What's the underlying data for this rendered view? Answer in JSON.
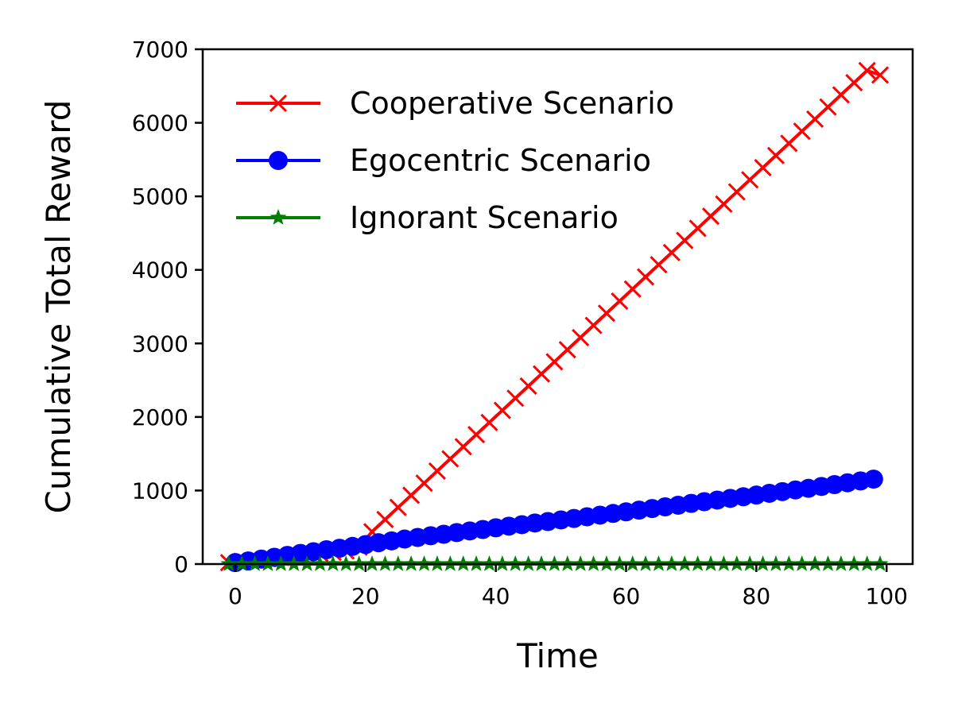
{
  "chart_data": {
    "type": "line",
    "xlabel": "Time",
    "ylabel": "Cumulative Total Reward",
    "xlim": [
      -5,
      104
    ],
    "ylim": [
      0,
      7000
    ],
    "xticks": [
      0,
      20,
      40,
      60,
      80,
      100
    ],
    "yticks": [
      0,
      1000,
      2000,
      3000,
      4000,
      5000,
      6000,
      7000
    ],
    "grid": false,
    "legend_position": "top-left",
    "series": [
      {
        "name": "Cooperative Scenario",
        "color": "#ff0000",
        "marker": "x",
        "x": [
          -1,
          1,
          3,
          5,
          7,
          9,
          11,
          13,
          15,
          17,
          19,
          21,
          23,
          25,
          27,
          29,
          31,
          33,
          35,
          37,
          39,
          41,
          43,
          45,
          47,
          49,
          51,
          53,
          55,
          57,
          59,
          61,
          63,
          65,
          67,
          69,
          71,
          73,
          75,
          77,
          79,
          81,
          83,
          85,
          87,
          89,
          91,
          93,
          95,
          97,
          99
        ],
        "y": [
          20,
          37,
          55,
          72,
          90,
          107,
          125,
          142,
          160,
          177,
          230,
          440,
          605,
          770,
          935,
          1100,
          1265,
          1430,
          1595,
          1760,
          1925,
          2090,
          2255,
          2420,
          2585,
          2750,
          2915,
          3080,
          3245,
          3410,
          3575,
          3740,
          3905,
          4070,
          4235,
          4400,
          4565,
          4730,
          4895,
          5060,
          5225,
          5390,
          5555,
          5720,
          5885,
          6050,
          6215,
          6380,
          6545,
          6710,
          6650
        ]
      },
      {
        "name": "Egocentric Scenario",
        "color": "#0000ff",
        "marker": "o",
        "x": [
          0,
          2,
          4,
          6,
          8,
          10,
          12,
          14,
          16,
          18,
          20,
          22,
          24,
          26,
          28,
          30,
          32,
          34,
          36,
          38,
          40,
          42,
          44,
          46,
          48,
          50,
          52,
          54,
          56,
          58,
          60,
          62,
          64,
          66,
          68,
          70,
          72,
          74,
          76,
          78,
          80,
          82,
          84,
          86,
          88,
          90,
          92,
          94,
          96,
          98
        ],
        "y": [
          20,
          42,
          68,
          92,
          118,
          145,
          168,
          195,
          215,
          240,
          265,
          290,
          315,
          340,
          362,
          385,
          405,
          428,
          450,
          470,
          493,
          515,
          535,
          558,
          578,
          600,
          620,
          643,
          665,
          688,
          710,
          733,
          755,
          778,
          800,
          825,
          848,
          870,
          893,
          915,
          938,
          962,
          985,
          1008,
          1030,
          1055,
          1080,
          1105,
          1130,
          1155
        ]
      },
      {
        "name": "Ignorant Scenario",
        "color": "#008000",
        "marker": "*",
        "x": [
          -1,
          1,
          3,
          5,
          7,
          9,
          11,
          13,
          15,
          17,
          19,
          21,
          23,
          25,
          27,
          29,
          31,
          33,
          35,
          37,
          39,
          41,
          43,
          45,
          47,
          49,
          51,
          53,
          55,
          57,
          59,
          61,
          63,
          65,
          67,
          69,
          71,
          73,
          75,
          77,
          79,
          81,
          83,
          85,
          87,
          89,
          91,
          93,
          95,
          97,
          99
        ],
        "y": [
          0,
          0,
          0,
          0,
          0,
          0,
          0,
          0,
          0,
          0,
          0,
          0,
          0,
          0,
          0,
          0,
          0,
          0,
          0,
          0,
          0,
          0,
          0,
          0,
          0,
          0,
          0,
          0,
          0,
          0,
          0,
          0,
          0,
          0,
          0,
          0,
          0,
          0,
          0,
          0,
          0,
          0,
          0,
          0,
          0,
          0,
          0,
          0,
          0,
          0,
          0
        ]
      }
    ]
  }
}
